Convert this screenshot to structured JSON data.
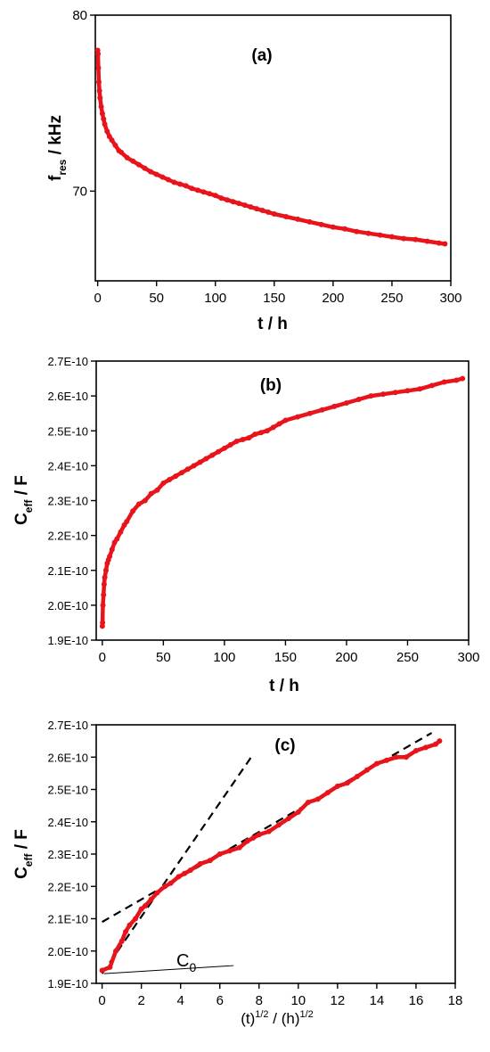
{
  "chart_data": [
    {
      "type": "scatter",
      "panel_label": "(a)",
      "xlabel": "t / h",
      "ylabel_main": "f",
      "ylabel_sub": "res",
      "ylabel_unit": " / kHz",
      "xlim": [
        -2,
        300
      ],
      "ylim": [
        64.9,
        80
      ],
      "x_ticks": [
        0,
        50,
        100,
        150,
        200,
        250,
        300
      ],
      "x_tick_labels": [
        "0",
        "50",
        "100",
        "150",
        "200",
        "250",
        "300"
      ],
      "y_ticks": [
        70,
        80
      ],
      "y_tick_labels": [
        "70",
        "80"
      ],
      "series": [
        {
          "color": "#e8141b",
          "x": [
            0,
            0.3,
            0.6,
            1,
            1.5,
            2,
            3,
            4,
            5,
            6,
            8,
            10,
            12,
            15,
            18,
            20,
            25,
            30,
            35,
            40,
            45,
            50,
            55,
            60,
            65,
            70,
            75,
            80,
            85,
            90,
            95,
            100,
            105,
            110,
            115,
            120,
            125,
            130,
            135,
            140,
            145,
            150,
            160,
            170,
            180,
            190,
            200,
            210,
            220,
            230,
            240,
            250,
            260,
            270,
            280,
            290,
            295
          ],
          "y": [
            78,
            77.8,
            77,
            76.2,
            75.7,
            75.3,
            74.8,
            74.4,
            74.1,
            73.8,
            73.4,
            73.1,
            72.9,
            72.6,
            72.3,
            72.2,
            71.9,
            71.7,
            71.5,
            71.3,
            71.1,
            70.95,
            70.8,
            70.65,
            70.5,
            70.4,
            70.3,
            70.15,
            70.05,
            69.95,
            69.85,
            69.75,
            69.6,
            69.5,
            69.4,
            69.3,
            69.2,
            69.1,
            69.0,
            68.9,
            68.8,
            68.7,
            68.55,
            68.4,
            68.25,
            68.1,
            67.95,
            67.85,
            67.7,
            67.6,
            67.5,
            67.4,
            67.3,
            67.25,
            67.15,
            67.05,
            67.0
          ]
        }
      ]
    },
    {
      "type": "scatter",
      "panel_label": "(b)",
      "xlabel": "t / h",
      "ylabel_main": "C",
      "ylabel_sub": "eff",
      "ylabel_unit": " / F",
      "xlim": [
        -5,
        300
      ],
      "ylim": [
        1.9e-10,
        2.7e-10
      ],
      "x_ticks": [
        0,
        50,
        100,
        150,
        200,
        250,
        300
      ],
      "x_tick_labels": [
        "0",
        "50",
        "100",
        "150",
        "200",
        "250",
        "300"
      ],
      "y_ticks": [
        1.9e-10,
        2e-10,
        2.1e-10,
        2.2e-10,
        2.3e-10,
        2.4e-10,
        2.5e-10,
        2.6e-10,
        2.7e-10
      ],
      "y_tick_labels": [
        "1.9E-10",
        "2.0E-10",
        "2.1E-10",
        "2.2E-10",
        "2.3E-10",
        "2.4E-10",
        "2.5E-10",
        "2.6E-10",
        "2.7E-10"
      ],
      "series": [
        {
          "color": "#e8141b",
          "x": [
            0,
            0.2,
            0.5,
            1,
            1.5,
            2,
            3,
            4,
            5,
            6,
            8,
            10,
            12,
            15,
            18,
            20,
            25,
            30,
            35,
            40,
            45,
            50,
            55,
            60,
            65,
            70,
            75,
            80,
            85,
            90,
            95,
            100,
            105,
            110,
            115,
            120,
            125,
            130,
            135,
            140,
            145,
            150,
            160,
            170,
            180,
            190,
            200,
            210,
            220,
            230,
            240,
            250,
            260,
            270,
            280,
            290,
            295
          ],
          "y": [
            1.94e-10,
            1.95e-10,
            2e-10,
            2.03e-10,
            2.06e-10,
            2.08e-10,
            2.1e-10,
            2.12e-10,
            2.13e-10,
            2.14e-10,
            2.16e-10,
            2.18e-10,
            2.19e-10,
            2.21e-10,
            2.23e-10,
            2.24e-10,
            2.27e-10,
            2.29e-10,
            2.3e-10,
            2.32e-10,
            2.33e-10,
            2.35e-10,
            2.36e-10,
            2.37e-10,
            2.38e-10,
            2.39e-10,
            2.4e-10,
            2.41e-10,
            2.42e-10,
            2.43e-10,
            2.44e-10,
            2.45e-10,
            2.46e-10,
            2.47e-10,
            2.475e-10,
            2.48e-10,
            2.49e-10,
            2.495e-10,
            2.5e-10,
            2.51e-10,
            2.52e-10,
            2.53e-10,
            2.54e-10,
            2.55e-10,
            2.56e-10,
            2.57e-10,
            2.58e-10,
            2.59e-10,
            2.6e-10,
            2.605e-10,
            2.61e-10,
            2.615e-10,
            2.62e-10,
            2.63e-10,
            2.64e-10,
            2.645e-10,
            2.65e-10
          ]
        }
      ]
    },
    {
      "type": "scatter",
      "panel_label": "(c)",
      "xlabel": "(t)^1/2 / (h)^1/2",
      "xlabel_parts": [
        "(t)",
        "1/2",
        " / (h)",
        "1/2"
      ],
      "ylabel_main": "C",
      "ylabel_sub": "eff",
      "ylabel_unit": " / F",
      "annotation_main": "C",
      "annotation_sub": "0",
      "xlim": [
        -0.3,
        18
      ],
      "ylim": [
        1.9e-10,
        2.7e-10
      ],
      "x_ticks": [
        0,
        2,
        4,
        6,
        8,
        10,
        12,
        14,
        16,
        18
      ],
      "x_tick_labels": [
        "0",
        "2",
        "4",
        "6",
        "8",
        "10",
        "12",
        "14",
        "16",
        "18"
      ],
      "y_ticks": [
        1.9e-10,
        2e-10,
        2.1e-10,
        2.2e-10,
        2.3e-10,
        2.4e-10,
        2.5e-10,
        2.6e-10,
        2.7e-10
      ],
      "y_tick_labels": [
        "1.9E-10",
        "2.0E-10",
        "2.1E-10",
        "2.2E-10",
        "2.3E-10",
        "2.4E-10",
        "2.5E-10",
        "2.6E-10",
        "2.7E-10"
      ],
      "series": [
        {
          "color": "#e8141b",
          "x": [
            0,
            0.4,
            0.7,
            1,
            1.2,
            1.4,
            1.7,
            2,
            2.2,
            2.5,
            2.8,
            3.2,
            3.5,
            3.9,
            4.2,
            4.5,
            5,
            5.5,
            6,
            6.5,
            7,
            7.4,
            7.7,
            8,
            8.5,
            9,
            9.5,
            10,
            10.5,
            11,
            11.5,
            12,
            12.5,
            13,
            13.5,
            14,
            14.5,
            15,
            15.5,
            16,
            16.5,
            17,
            17.2
          ],
          "y": [
            1.94e-10,
            1.95e-10,
            2e-10,
            2.03e-10,
            2.06e-10,
            2.08e-10,
            2.1e-10,
            2.13e-10,
            2.14e-10,
            2.16e-10,
            2.18e-10,
            2.2e-10,
            2.21e-10,
            2.23e-10,
            2.24e-10,
            2.25e-10,
            2.27e-10,
            2.28e-10,
            2.3e-10,
            2.31e-10,
            2.32e-10,
            2.34e-10,
            2.35e-10,
            2.36e-10,
            2.37e-10,
            2.39e-10,
            2.41e-10,
            2.43e-10,
            2.46e-10,
            2.47e-10,
            2.49e-10,
            2.51e-10,
            2.52e-10,
            2.54e-10,
            2.56e-10,
            2.58e-10,
            2.59e-10,
            2.6e-10,
            2.6e-10,
            2.62e-10,
            2.63e-10,
            2.64e-10,
            2.65e-10
          ]
        }
      ],
      "fit_lines": [
        {
          "x": [
            0,
            7.6
          ],
          "y": [
            1.93e-10,
            2.6e-10
          ]
        },
        {
          "x": [
            0,
            16.8
          ],
          "y": [
            2.09e-10,
            2.675e-10
          ]
        }
      ],
      "annotation_pointer": {
        "x": [
          0.1,
          6.7
        ],
        "y": [
          1.93e-10,
          1.955e-10
        ]
      }
    }
  ]
}
